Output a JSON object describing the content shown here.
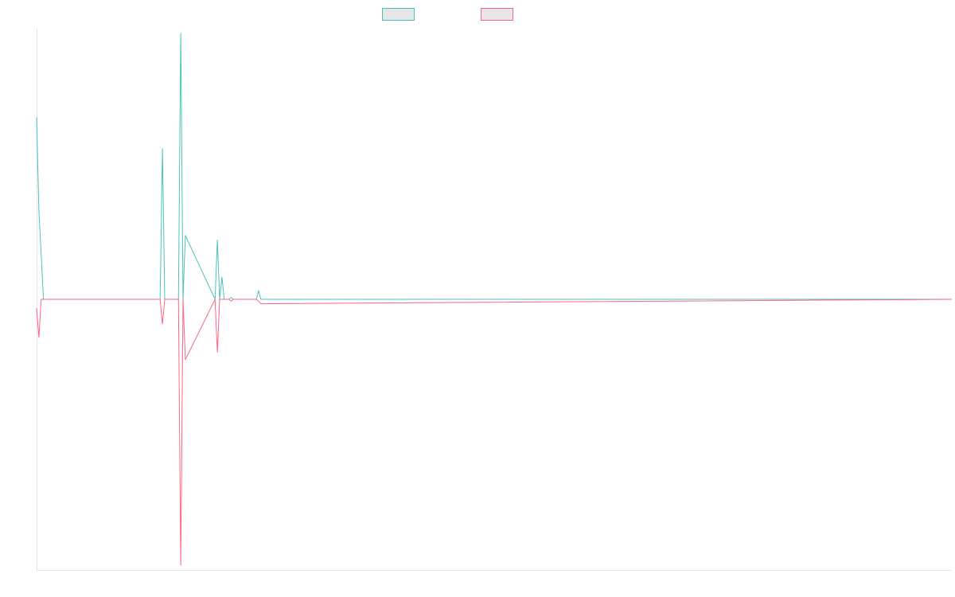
{
  "chart_data": {
    "type": "line",
    "title": "",
    "xlabel": "",
    "ylabel": "",
    "grid": false,
    "legend_position": "top-center",
    "legend_labels_shown": false,
    "ylim": [
      -305,
      305
    ],
    "xlim": [
      0,
      200
    ],
    "x": [
      0,
      0.5,
      1,
      1.5,
      27,
      27.5,
      28,
      31,
      31.5,
      32,
      32.5,
      39,
      39.5,
      40,
      40.5,
      41,
      42,
      42.5,
      43,
      48,
      48.5,
      49,
      200
    ],
    "series": [
      {
        "color": "#4bc0c0",
        "values": [
          205,
          100,
          50,
          0,
          0,
          170,
          0,
          0,
          300,
          0,
          72,
          0,
          67,
          0,
          25,
          0,
          0,
          2,
          0,
          0,
          10,
          0,
          0
        ]
      },
      {
        "color": "#ff6384",
        "values": [
          -10,
          -43,
          0,
          0,
          0,
          -28,
          0,
          0,
          -300,
          0,
          -68,
          0,
          -60,
          0,
          0,
          0,
          0,
          -2,
          0,
          0,
          -2,
          -5,
          0
        ]
      }
    ]
  }
}
